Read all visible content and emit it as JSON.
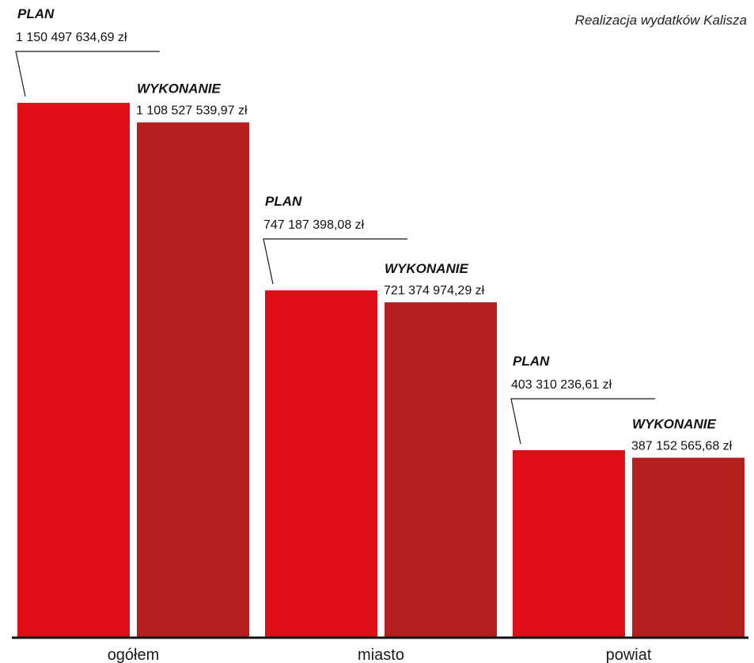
{
  "chart_data": {
    "type": "bar",
    "title": "Realizacja wydatków Kalisza",
    "categories": [
      "ogółem",
      "miasto",
      "powiat"
    ],
    "series": [
      {
        "name": "PLAN",
        "values": [
          1150497634.69,
          747187398.08,
          403310236.61
        ],
        "labels": [
          "1 150 497 634,69 zł",
          "747 187 398,08 zł",
          "403 310 236,61 zł"
        ],
        "color": "#e00f17"
      },
      {
        "name": "WYKONANIE",
        "values": [
          1108527539.97,
          721374974.29,
          387152565.68
        ],
        "labels": [
          "1 108 527 539,97 zł",
          "721 374 974,29 zł",
          "387 152 565,68 zł"
        ],
        "color": "#b51f1f"
      }
    ],
    "ylim": [
      0,
      1150497634.69
    ],
    "grid": false,
    "legend": "none"
  }
}
